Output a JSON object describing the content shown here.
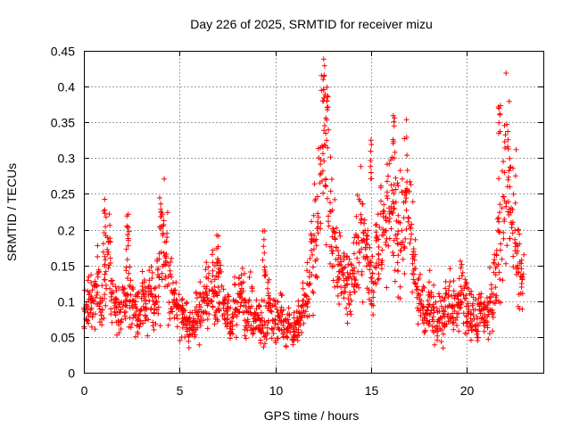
{
  "chart_data": {
    "type": "scatter",
    "title": "Day 226 of 2025, SRMTID for receiver mizu",
    "xlabel": "GPS time / hours",
    "ylabel": "SRMTID / TECUs",
    "xlim": [
      0,
      24
    ],
    "ylim": [
      0,
      0.45
    ],
    "xticks": [
      "0",
      "5",
      "10",
      "15",
      "20"
    ],
    "yticks": [
      "0",
      "0.05",
      "0.1",
      "0.15",
      "0.2",
      "0.25",
      "0.3",
      "0.35",
      "0.4",
      "0.45"
    ],
    "grid": true,
    "marker": "plus",
    "color": "#ff0000",
    "series": [
      {
        "name": "SRMTID",
        "x": [
          0.0,
          0.2,
          0.4,
          0.6,
          0.8,
          1.0,
          1.2,
          1.4,
          1.6,
          1.8,
          2.0,
          2.2,
          2.4,
          2.6,
          2.8,
          3.0,
          3.2,
          3.4,
          3.6,
          3.8,
          4.0,
          4.2,
          4.4,
          4.6,
          4.8,
          5.0,
          5.2,
          5.4,
          5.6,
          5.8,
          6.0,
          6.2,
          6.4,
          6.6,
          6.8,
          7.0,
          7.2,
          7.4,
          7.6,
          7.8,
          8.0,
          8.2,
          8.4,
          8.6,
          8.8,
          9.0,
          9.2,
          9.4,
          9.6,
          9.8,
          10.0,
          10.2,
          10.4,
          10.6,
          10.8,
          11.0,
          11.2,
          11.4,
          11.6,
          11.8,
          12.0,
          12.2,
          12.4,
          12.6,
          12.8,
          13.0,
          13.2,
          13.4,
          13.6,
          13.8,
          14.0,
          14.2,
          14.4,
          14.6,
          14.8,
          15.0,
          15.2,
          15.4,
          15.6,
          15.8,
          16.0,
          16.2,
          16.4,
          16.6,
          16.8,
          17.0,
          17.2,
          17.4,
          17.6,
          17.8,
          18.0,
          18.2,
          18.4,
          18.6,
          18.8,
          19.0,
          19.2,
          19.4,
          19.6,
          19.8,
          20.0,
          20.2,
          20.4,
          20.6,
          20.8,
          21.0,
          21.2,
          21.4,
          21.6,
          21.8,
          22.0,
          22.2,
          22.4,
          22.6,
          22.8
        ],
        "y": [
          0.085,
          0.11,
          0.1,
          0.12,
          0.09,
          0.13,
          0.17,
          0.12,
          0.09,
          0.08,
          0.1,
          0.13,
          0.1,
          0.09,
          0.08,
          0.11,
          0.1,
          0.12,
          0.09,
          0.13,
          0.18,
          0.15,
          0.12,
          0.1,
          0.09,
          0.08,
          0.07,
          0.06,
          0.07,
          0.08,
          0.09,
          0.11,
          0.1,
          0.12,
          0.11,
          0.13,
          0.09,
          0.08,
          0.07,
          0.09,
          0.1,
          0.11,
          0.08,
          0.09,
          0.07,
          0.08,
          0.06,
          0.09,
          0.1,
          0.08,
          0.07,
          0.08,
          0.06,
          0.07,
          0.06,
          0.07,
          0.08,
          0.1,
          0.12,
          0.15,
          0.18,
          0.25,
          0.33,
          0.28,
          0.22,
          0.17,
          0.15,
          0.14,
          0.13,
          0.12,
          0.14,
          0.17,
          0.2,
          0.18,
          0.15,
          0.13,
          0.17,
          0.2,
          0.19,
          0.22,
          0.24,
          0.21,
          0.19,
          0.22,
          0.25,
          0.18,
          0.14,
          0.11,
          0.09,
          0.08,
          0.1,
          0.09,
          0.08,
          0.07,
          0.09,
          0.11,
          0.1,
          0.09,
          0.12,
          0.1,
          0.09,
          0.08,
          0.07,
          0.09,
          0.08,
          0.07,
          0.1,
          0.13,
          0.17,
          0.24,
          0.29,
          0.26,
          0.2,
          0.15,
          0.12
        ],
        "spread": [
          0.025,
          0.03,
          0.03,
          0.035,
          0.025,
          0.04,
          0.045,
          0.04,
          0.025,
          0.025,
          0.03,
          0.05,
          0.03,
          0.03,
          0.025,
          0.03,
          0.03,
          0.035,
          0.03,
          0.04,
          0.06,
          0.05,
          0.04,
          0.03,
          0.025,
          0.025,
          0.02,
          0.02,
          0.02,
          0.025,
          0.03,
          0.035,
          0.03,
          0.04,
          0.035,
          0.04,
          0.03,
          0.025,
          0.02,
          0.03,
          0.03,
          0.035,
          0.025,
          0.03,
          0.025,
          0.03,
          0.025,
          0.05,
          0.03,
          0.025,
          0.02,
          0.025,
          0.02,
          0.02,
          0.02,
          0.02,
          0.025,
          0.03,
          0.04,
          0.05,
          0.06,
          0.09,
          0.1,
          0.08,
          0.07,
          0.05,
          0.05,
          0.04,
          0.04,
          0.04,
          0.04,
          0.05,
          0.06,
          0.05,
          0.05,
          0.04,
          0.05,
          0.06,
          0.06,
          0.07,
          0.07,
          0.06,
          0.06,
          0.07,
          0.08,
          0.06,
          0.04,
          0.03,
          0.03,
          0.025,
          0.03,
          0.03,
          0.025,
          0.025,
          0.03,
          0.04,
          0.03,
          0.03,
          0.04,
          0.03,
          0.03,
          0.025,
          0.025,
          0.03,
          0.025,
          0.025,
          0.03,
          0.04,
          0.06,
          0.09,
          0.09,
          0.08,
          0.07,
          0.05,
          0.04
        ],
        "points_per_bin": 16,
        "peaks": [
          {
            "x": 12.55,
            "y": 0.44
          },
          {
            "x": 12.7,
            "y": 0.4
          },
          {
            "x": 16.2,
            "y": 0.36
          },
          {
            "x": 21.7,
            "y": 0.38
          },
          {
            "x": 15.0,
            "y": 0.33
          },
          {
            "x": 4.0,
            "y": 0.25
          },
          {
            "x": 1.1,
            "y": 0.25
          },
          {
            "x": 2.3,
            "y": 0.23
          },
          {
            "x": 7.0,
            "y": 0.2
          },
          {
            "x": 9.4,
            "y": 0.2
          }
        ]
      }
    ]
  }
}
